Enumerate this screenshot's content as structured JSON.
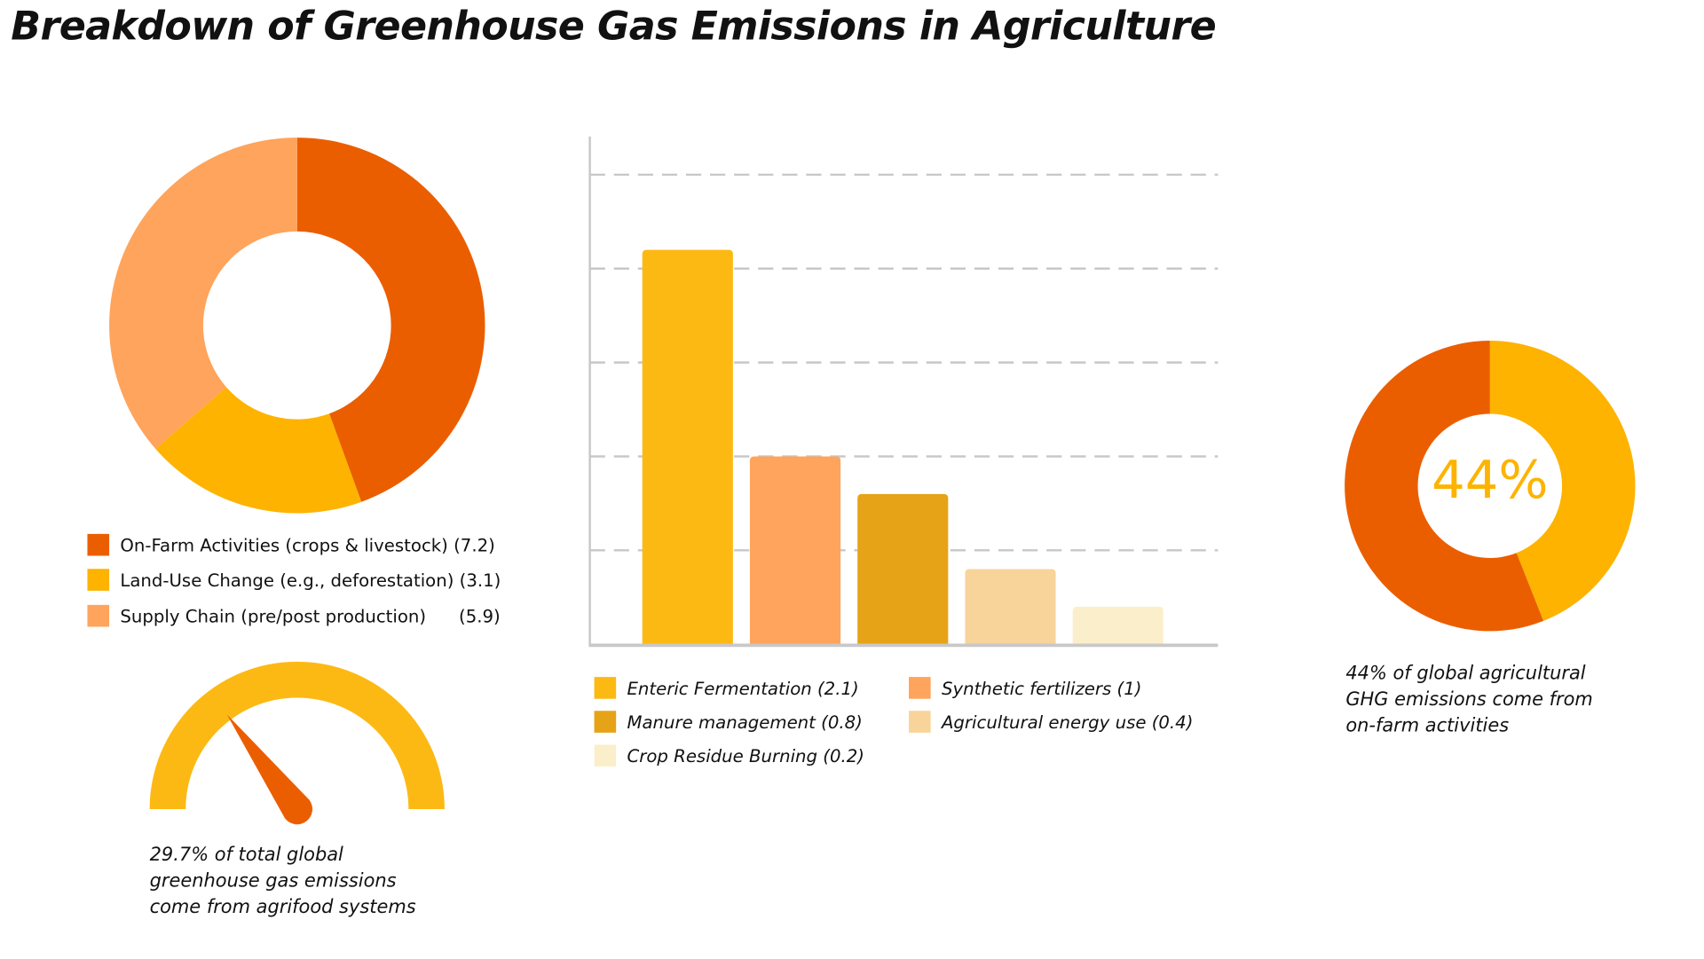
{
  "title": "Breakdown of Greenhouse Gas Emissions in Agriculture",
  "chart_data": [
    {
      "type": "pie",
      "name": "donut",
      "labels": [
        "On-Farm Activities (crops & livestock)",
        "Land-Use Change (e.g., deforestation)",
        "Supply Chain (pre/post production)"
      ],
      "legend": [
        "On-Farm Activities (crops & livestock) (7.2)",
        "Land-Use Change (e.g., deforestation) (3.1)",
        "Supply Chain (pre/post production)"
      ],
      "legend_extra": "(5.9)",
      "values": [
        7.2,
        3.1,
        5.9
      ],
      "colors": [
        "#EB5E00",
        "#FDB300",
        "#FFA45C"
      ]
    },
    {
      "type": "bar",
      "categories": [
        "Enteric Fermentation",
        "Synthetic fertilizers",
        "Manure management",
        "Agricultural energy use",
        "Crop Residue Burning"
      ],
      "values": [
        2.1,
        1,
        0.8,
        0.4,
        0.2
      ],
      "colors": [
        "#FDB913",
        "#FFA45C",
        "#E6A317",
        "#F8D49A",
        "#FBEFCB"
      ],
      "legend": [
        "Enteric Fermentation (2.1)",
        "Synthetic fertilizers (1)",
        "Manure management (0.8)",
        "Agricultural energy use (0.4)",
        "Crop Residue Burning (0.2)"
      ],
      "ylim": [
        0,
        2.7
      ],
      "gridlines": [
        0.5,
        1,
        1.5,
        2,
        2.5
      ],
      "grid": true
    },
    {
      "type": "gauge",
      "value": 29.7,
      "max": 100,
      "caption": [
        "29.7% of total global",
        "greenhouse gas emissions",
        "come from agrifood systems"
      ]
    },
    {
      "type": "pie",
      "name": "percent-donut",
      "values": [
        44,
        56
      ],
      "colors": [
        "#FDB300",
        "#EB5E00"
      ],
      "center_label": "44%",
      "caption": [
        "44% of global agricultural",
        "GHG emissions come from",
        "on-farm activities"
      ]
    }
  ]
}
